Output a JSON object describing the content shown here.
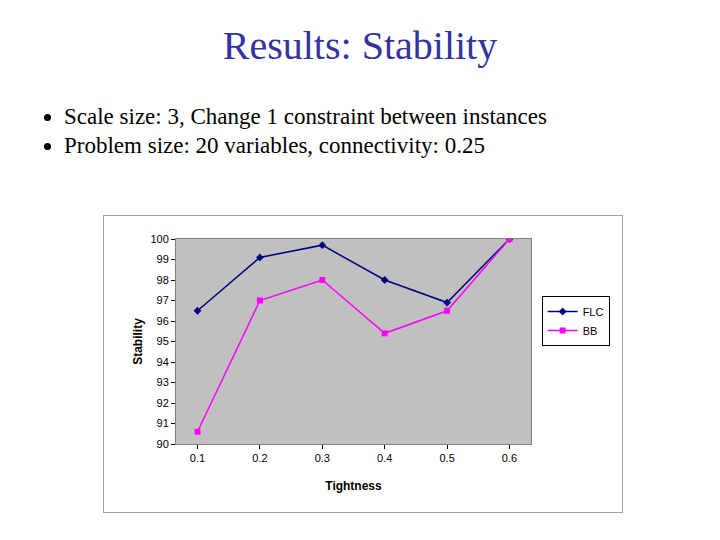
{
  "slide": {
    "title": "Results: Stability",
    "bullets": [
      "Scale size: 3, Change 1 constraint between instances",
      "Problem size: 20 variables, connectivity: 0.25"
    ]
  },
  "chart_data": {
    "type": "line",
    "x_label": "Tightness",
    "y_label": "Stability",
    "categories": [
      "0.1",
      "0.2",
      "0.3",
      "0.4",
      "0.5",
      "0.6"
    ],
    "series": [
      {
        "name": "FLC",
        "color": "#000080",
        "marker": "diamond",
        "values": [
          96.5,
          99.1,
          99.7,
          98.0,
          96.9,
          100
        ]
      },
      {
        "name": "BB",
        "color": "#ff00ff",
        "marker": "square",
        "values": [
          90.6,
          97.0,
          98.0,
          95.4,
          96.5,
          100
        ]
      }
    ],
    "ylim": [
      90,
      100
    ],
    "yticks": [
      90,
      91,
      92,
      93,
      94,
      95,
      96,
      97,
      98,
      99,
      100
    ],
    "grid": false,
    "legend": "right"
  }
}
